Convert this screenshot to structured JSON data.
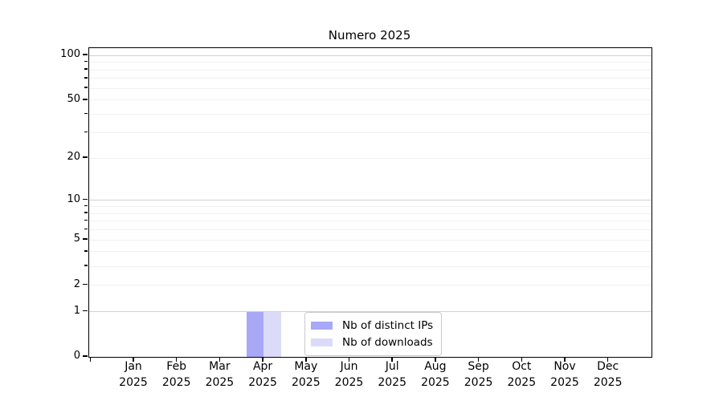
{
  "chart_data": {
    "type": "bar",
    "title": "Numero 2025",
    "categories": [
      {
        "month": "Jan",
        "year": "2025"
      },
      {
        "month": "Feb",
        "year": "2025"
      },
      {
        "month": "Mar",
        "year": "2025"
      },
      {
        "month": "Apr",
        "year": "2025"
      },
      {
        "month": "May",
        "year": "2025"
      },
      {
        "month": "Jun",
        "year": "2025"
      },
      {
        "month": "Jul",
        "year": "2025"
      },
      {
        "month": "Aug",
        "year": "2025"
      },
      {
        "month": "Sep",
        "year": "2025"
      },
      {
        "month": "Oct",
        "year": "2025"
      },
      {
        "month": "Nov",
        "year": "2025"
      },
      {
        "month": "Dec",
        "year": "2025"
      }
    ],
    "series": [
      {
        "name": "Nb of distinct IPs",
        "color": "#a8a8f7",
        "values": [
          0,
          0,
          0,
          1,
          0,
          0,
          0,
          0,
          0,
          0,
          0,
          0
        ]
      },
      {
        "name": "Nb of downloads",
        "color": "#dbdbf9",
        "values": [
          0,
          0,
          0,
          1,
          0,
          0,
          0,
          0,
          0,
          0,
          0,
          0
        ]
      }
    ],
    "yscale": "log1p",
    "ylim": [
      0,
      112
    ],
    "y_tick_values": [
      0,
      1,
      2,
      5,
      10,
      20,
      50,
      100
    ],
    "y_major_gridlines": [
      1,
      10,
      100
    ],
    "y_minor_ticks": [
      3,
      4,
      6,
      7,
      8,
      9,
      30,
      40,
      60,
      70,
      80,
      90
    ],
    "xlabel": "",
    "ylabel": "",
    "grid": "horizontal",
    "legend_position": "lower-center-inside",
    "colors": {
      "major_grid": "#d2d2d2",
      "minor_grid": "#f0f0f0",
      "axis": "#000000",
      "text": "#000000",
      "legend_border": "#c9c9c9"
    }
  }
}
